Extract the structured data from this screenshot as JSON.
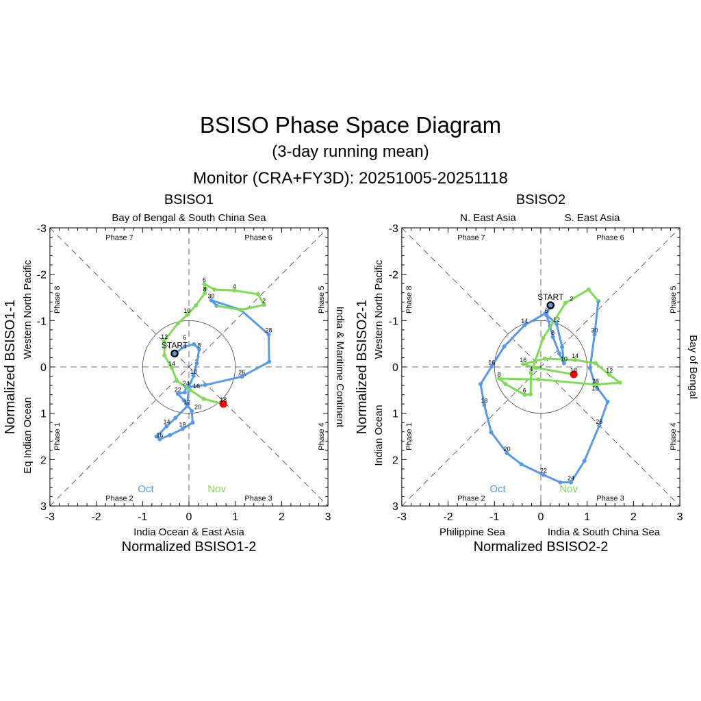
{
  "title": "BSISO Phase Space Diagram",
  "subtitle": "(3-day running mean)",
  "monitor": "Monitor (CRA+FY3D): 20251005-20251118",
  "colors": {
    "oct": "#5599ee",
    "nov": "#7ddb55",
    "end": "#ff0000"
  },
  "chart_data": [
    {
      "type": "line",
      "title": "BSISO1",
      "xlabel": "Normalized BSISO1-2",
      "ylabel": "Normalized BSISO1-1",
      "xlim": [
        -3,
        3
      ],
      "ylim": [
        -3,
        3
      ],
      "y_inverted": true,
      "ticks": [
        "-3",
        "-2",
        "-1",
        "0",
        "1",
        "2",
        "3"
      ],
      "top_labels": [
        "Bay of Bengal & South China Sea"
      ],
      "bottom_labels": [
        "India Ocean & East Asia"
      ],
      "left_labels": [
        "Western North Pacific",
        "Eq Indian Ocean"
      ],
      "right_labels": [
        "India & Maritime Continent"
      ],
      "phases": [
        "Phase 1",
        "Phase 2",
        "Phase 3",
        "Phase 4",
        "Phase 5",
        "Phase 6",
        "Phase 7",
        "Phase 8"
      ],
      "start_label": "START",
      "legend": [
        "Oct",
        "Nov"
      ],
      "series": [
        {
          "name": "Oct",
          "start_day": 5,
          "points": [
            [
              -0.31,
              -0.29
            ],
            [
              -0.09,
              -0.44
            ],
            [
              0.11,
              -0.49
            ],
            [
              0.22,
              -0.38
            ],
            [
              0.17,
              -0.08
            ],
            [
              0.1,
              0.19
            ],
            [
              0.0,
              0.43
            ],
            [
              -0.04,
              0.85
            ],
            [
              -0.29,
              1.1
            ],
            [
              -0.48,
              1.28
            ],
            [
              -0.7,
              1.5
            ],
            [
              -0.63,
              1.56
            ],
            [
              -0.41,
              1.47
            ],
            [
              -0.14,
              1.34
            ],
            [
              0.08,
              1.2
            ],
            [
              0.06,
              0.95
            ],
            [
              -0.11,
              0.72
            ],
            [
              -0.24,
              0.58
            ],
            [
              -0.09,
              0.55
            ],
            [
              -0.06,
              0.44
            ],
            [
              0.35,
              0.39
            ],
            [
              1.14,
              0.21
            ],
            [
              1.73,
              -0.11
            ],
            [
              1.72,
              -0.7
            ],
            [
              1.12,
              -1.23
            ],
            [
              0.48,
              -1.44
            ],
            [
              0.6,
              -1.32
            ]
          ]
        },
        {
          "name": "Nov",
          "start_day": 1,
          "points": [
            [
              1.12,
              -1.23
            ],
            [
              1.62,
              -1.34
            ],
            [
              1.49,
              -1.57
            ],
            [
              0.98,
              -1.65
            ],
            [
              0.55,
              -1.67
            ],
            [
              0.33,
              -1.79
            ],
            [
              0.36,
              -1.69
            ],
            [
              0.34,
              -1.59
            ],
            [
              0.15,
              -1.33
            ],
            [
              -0.04,
              -1.12
            ],
            [
              -0.24,
              -0.94
            ],
            [
              -0.53,
              -0.56
            ],
            [
              -0.53,
              -0.25
            ],
            [
              -0.37,
              0.02
            ],
            [
              -0.26,
              0.3
            ],
            [
              0.03,
              0.5
            ],
            [
              0.32,
              0.69
            ],
            [
              0.74,
              0.8
            ]
          ]
        }
      ]
    },
    {
      "type": "line",
      "title": "BSISO2",
      "xlabel": "Normalized BSISO2-2",
      "ylabel": "Normalized BSISO2-1",
      "xlim": [
        -3,
        3
      ],
      "ylim": [
        -3,
        3
      ],
      "y_inverted": true,
      "ticks": [
        "-3",
        "-2",
        "-1",
        "0",
        "1",
        "2",
        "3"
      ],
      "top_labels": [
        "N. East Asia",
        "S. East Asia"
      ],
      "bottom_labels": [
        "Philippine Sea",
        "India & South China Sea"
      ],
      "left_labels": [
        "Western North Pacific",
        "Indian Ocean"
      ],
      "right_labels": [
        "Bay of Bengal"
      ],
      "phases": [
        "Phase 1",
        "Phase 2",
        "Phase 3",
        "Phase 4",
        "Phase 5",
        "Phase 6",
        "Phase 7",
        "Phase 8"
      ],
      "start_label": "START",
      "legend": [
        "Oct",
        "Nov"
      ],
      "series": [
        {
          "name": "Oct",
          "start_day": 5,
          "points": [
            [
              0.21,
              -1.33
            ],
            [
              0.12,
              -1.12
            ],
            [
              0.2,
              -0.88
            ],
            [
              0.26,
              -0.65
            ],
            [
              0.4,
              -0.29
            ],
            [
              0.5,
              -0.08
            ],
            [
              0.46,
              -0.43
            ],
            [
              0.34,
              -0.93
            ],
            [
              0.09,
              -1.15
            ],
            [
              -0.35,
              -0.9
            ],
            [
              -0.79,
              -0.44
            ],
            [
              -1.06,
              -0.01
            ],
            [
              -1.3,
              0.37
            ],
            [
              -1.22,
              0.82
            ],
            [
              -1.07,
              1.41
            ],
            [
              -0.73,
              1.86
            ],
            [
              -0.42,
              2.1
            ],
            [
              0.06,
              2.33
            ],
            [
              0.42,
              2.49
            ],
            [
              0.65,
              2.49
            ],
            [
              0.94,
              2.03
            ],
            [
              1.26,
              1.27
            ],
            [
              1.44,
              0.75
            ],
            [
              1.18,
              0.4
            ],
            [
              1.06,
              0.03
            ],
            [
              1.16,
              -0.7
            ],
            [
              1.24,
              -1.42
            ]
          ]
        },
        {
          "name": "Nov",
          "start_day": 1,
          "points": [
            [
              1.03,
              -1.67
            ],
            [
              0.53,
              -1.38
            ],
            [
              0.05,
              -0.62
            ],
            [
              -0.21,
              0.13
            ],
            [
              -0.22,
              0.59
            ],
            [
              -0.35,
              0.6
            ],
            [
              -0.76,
              0.37
            ],
            [
              -0.9,
              0.25
            ],
            [
              -0.05,
              0.27
            ],
            [
              1.18,
              0.38
            ],
            [
              1.71,
              0.34
            ],
            [
              1.48,
              0.17
            ],
            [
              1.18,
              -0.08
            ],
            [
              0.74,
              -0.15
            ],
            [
              0.09,
              -0.18
            ],
            [
              -0.38,
              -0.06
            ],
            [
              -0.11,
              0.02
            ],
            [
              0.71,
              0.16
            ]
          ]
        }
      ]
    }
  ]
}
